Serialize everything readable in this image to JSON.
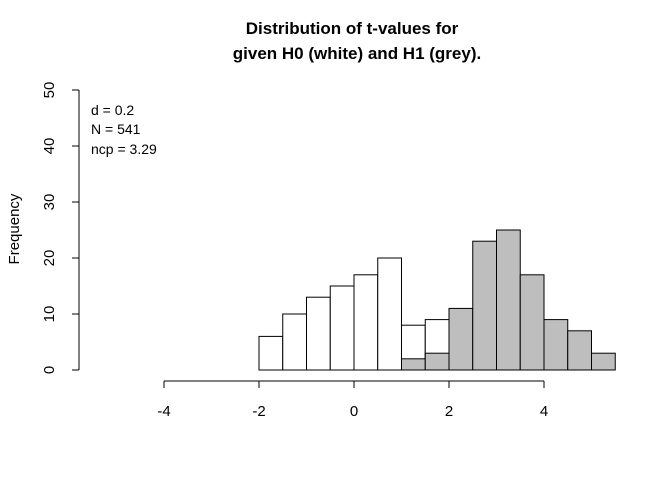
{
  "chart_data": {
    "type": "bar",
    "title_lines": [
      "Distribution of t-values for",
      "given H0 (white) and H1 (grey)."
    ],
    "xlabel": "",
    "ylabel": "Frequency",
    "xlim": [
      -4,
      5.5
    ],
    "ylim": [
      0,
      50
    ],
    "x_ticks": [
      -4,
      -2,
      0,
      2,
      4
    ],
    "y_ticks": [
      0,
      10,
      20,
      30,
      40,
      50
    ],
    "annotations": [
      "d = 0.2",
      "N = 541",
      "ncp = 3.29"
    ],
    "colors": {
      "h0_fill": "#ffffff",
      "h1_fill": "#bebebe",
      "stroke": "#000000"
    },
    "series": [
      {
        "bins": [
          {
            "x0": -2.0,
            "x1": -1.5,
            "count": 6
          },
          {
            "x0": -1.5,
            "x1": -1.0,
            "count": 10
          },
          {
            "x0": -1.0,
            "x1": -0.5,
            "count": 13
          },
          {
            "x0": -0.5,
            "x1": 0.0,
            "count": 15
          },
          {
            "x0": 0.0,
            "x1": 0.5,
            "count": 17
          },
          {
            "x0": 0.5,
            "x1": 1.0,
            "count": 20
          },
          {
            "x0": 1.0,
            "x1": 1.5,
            "count": 8
          },
          {
            "x0": 1.5,
            "x1": 2.0,
            "count": 9
          }
        ]
      },
      {
        "bins": [
          {
            "x0": 1.0,
            "x1": 1.5,
            "count": 2
          },
          {
            "x0": 1.5,
            "x1": 2.0,
            "count": 3
          },
          {
            "x0": 2.0,
            "x1": 2.5,
            "count": 11
          },
          {
            "x0": 2.5,
            "x1": 3.0,
            "count": 23
          },
          {
            "x0": 3.0,
            "x1": 3.5,
            "count": 25
          },
          {
            "x0": 3.5,
            "x1": 4.0,
            "count": 17
          },
          {
            "x0": 4.0,
            "x1": 4.5,
            "count": 9
          },
          {
            "x0": 4.5,
            "x1": 5.0,
            "count": 7
          },
          {
            "x0": 5.0,
            "x1": 5.5,
            "count": 3
          }
        ]
      }
    ]
  }
}
